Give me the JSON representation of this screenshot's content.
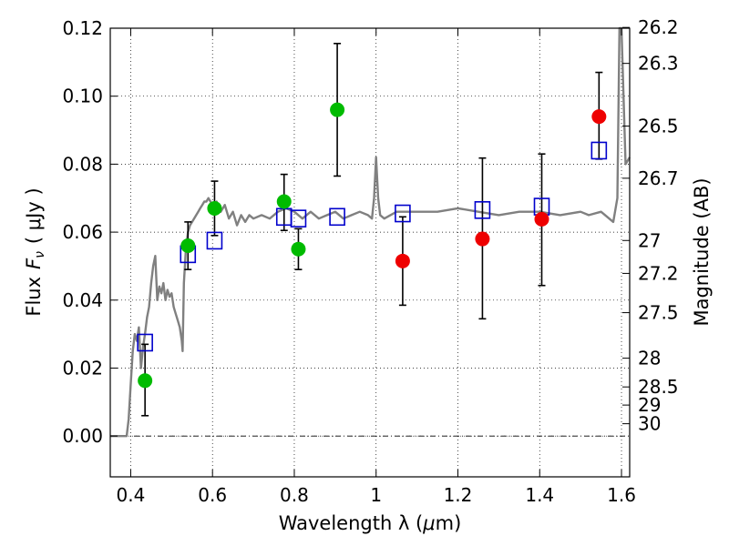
{
  "chart_data": {
    "type": "scatter",
    "title": "",
    "xlabel": "Wavelength  λ (μm)",
    "ylabel": "Flux  F_ν  ( μJy )",
    "ylabel_parts": {
      "flux": "Flux",
      "f": "F",
      "nu": "ν",
      "unit": "( μJy )"
    },
    "xlabel_parts": {
      "text": "Wavelength  λ (",
      "mu": "μ",
      "unit": "m)"
    },
    "y2label": "Magnitude (AB)",
    "xlim": [
      0.35,
      1.62
    ],
    "ylim": [
      -0.012,
      0.12
    ],
    "grid": true,
    "x_ticks": [
      0.4,
      0.6,
      0.8,
      1.0,
      1.2,
      1.4,
      1.6
    ],
    "x_tick_labels": [
      "0.4",
      "0.6",
      "0.8",
      "1",
      "1.2",
      "1.4",
      "1.6"
    ],
    "y_ticks": [
      0.0,
      0.02,
      0.04,
      0.06,
      0.08,
      0.1,
      0.12
    ],
    "y_tick_labels": [
      "0.00",
      "0.02",
      "0.04",
      "0.06",
      "0.08",
      "0.10",
      "0.12"
    ],
    "mag_ticks": [
      {
        "label": "26.2",
        "mag": 26.2
      },
      {
        "label": "26.3",
        "mag": 26.3
      },
      {
        "label": "26.5",
        "mag": 26.5
      },
      {
        "label": "26.7",
        "mag": 26.7
      },
      {
        "label": "27",
        "mag": 27.0
      },
      {
        "label": "27.2",
        "mag": 27.2
      },
      {
        "label": "27.5",
        "mag": 27.5
      },
      {
        "label": "28",
        "mag": 28.0
      },
      {
        "label": "28.5",
        "mag": 28.5
      },
      {
        "label": "29",
        "mag": 29.0
      },
      {
        "label": "30",
        "mag": 30.0
      }
    ],
    "series": [
      {
        "name": "Model SED",
        "kind": "line",
        "color": "#808080",
        "x": [
          0.35,
          0.385,
          0.39,
          0.395,
          0.4,
          0.405,
          0.41,
          0.415,
          0.42,
          0.425,
          0.43,
          0.435,
          0.44,
          0.445,
          0.45,
          0.455,
          0.46,
          0.465,
          0.47,
          0.475,
          0.48,
          0.485,
          0.49,
          0.495,
          0.5,
          0.505,
          0.51,
          0.515,
          0.52,
          0.525,
          0.527,
          0.53,
          0.535,
          0.54,
          0.545,
          0.55,
          0.555,
          0.56,
          0.565,
          0.57,
          0.575,
          0.58,
          0.585,
          0.59,
          0.6,
          0.61,
          0.62,
          0.63,
          0.64,
          0.65,
          0.66,
          0.67,
          0.68,
          0.69,
          0.7,
          0.72,
          0.74,
          0.76,
          0.78,
          0.8,
          0.82,
          0.84,
          0.86,
          0.88,
          0.9,
          0.92,
          0.94,
          0.96,
          0.98,
          0.99,
          0.995,
          1.0,
          1.005,
          1.01,
          1.02,
          1.05,
          1.1,
          1.15,
          1.2,
          1.25,
          1.3,
          1.35,
          1.4,
          1.45,
          1.5,
          1.52,
          1.55,
          1.58,
          1.59,
          1.595,
          1.6,
          1.61,
          1.62
        ],
        "y": [
          0.0,
          0.0,
          0.0,
          0.005,
          0.015,
          0.025,
          0.03,
          0.028,
          0.032,
          0.02,
          0.026,
          0.03,
          0.035,
          0.038,
          0.045,
          0.05,
          0.053,
          0.04,
          0.044,
          0.042,
          0.045,
          0.04,
          0.043,
          0.041,
          0.042,
          0.038,
          0.036,
          0.034,
          0.032,
          0.028,
          0.025,
          0.045,
          0.055,
          0.06,
          0.062,
          0.063,
          0.064,
          0.065,
          0.066,
          0.067,
          0.068,
          0.069,
          0.069,
          0.07,
          0.068,
          0.069,
          0.066,
          0.068,
          0.064,
          0.066,
          0.062,
          0.065,
          0.063,
          0.065,
          0.064,
          0.065,
          0.064,
          0.066,
          0.067,
          0.066,
          0.064,
          0.066,
          0.064,
          0.065,
          0.066,
          0.064,
          0.065,
          0.066,
          0.065,
          0.064,
          0.07,
          0.082,
          0.07,
          0.065,
          0.064,
          0.066,
          0.066,
          0.066,
          0.067,
          0.066,
          0.065,
          0.066,
          0.066,
          0.065,
          0.066,
          0.065,
          0.066,
          0.063,
          0.07,
          0.12,
          0.12,
          0.08,
          0.082
        ]
      },
      {
        "name": "Model photometry",
        "kind": "open-square",
        "color": "#0000cc",
        "x": [
          0.435,
          0.54,
          0.605,
          0.775,
          0.81,
          0.905,
          1.065,
          1.26,
          1.405,
          1.545
        ],
        "y": [
          0.0275,
          0.0535,
          0.0575,
          0.0645,
          0.064,
          0.0645,
          0.0655,
          0.0665,
          0.0675,
          0.084
        ]
      },
      {
        "name": "Observed (green)",
        "kind": "filled-circle",
        "color": "#00bb00",
        "x": [
          0.435,
          0.54,
          0.605,
          0.775,
          0.81,
          0.905
        ],
        "y": [
          0.0163,
          0.056,
          0.067,
          0.069,
          0.055,
          0.096
        ],
        "yerr_low": [
          0.006,
          0.049,
          0.059,
          0.0605,
          0.049,
          0.0765
        ],
        "yerr_high": [
          0.027,
          0.063,
          0.075,
          0.077,
          0.061,
          0.1155
        ]
      },
      {
        "name": "Observed (red)",
        "kind": "filled-circle",
        "color": "#ee0000",
        "x": [
          1.065,
          1.26,
          1.405,
          1.545
        ],
        "y": [
          0.0515,
          0.058,
          0.0638,
          0.094
        ],
        "yerr_low": [
          0.0385,
          0.0345,
          0.0443,
          0.0815
        ],
        "yerr_high": [
          0.0645,
          0.0818,
          0.083,
          0.107
        ]
      }
    ]
  }
}
